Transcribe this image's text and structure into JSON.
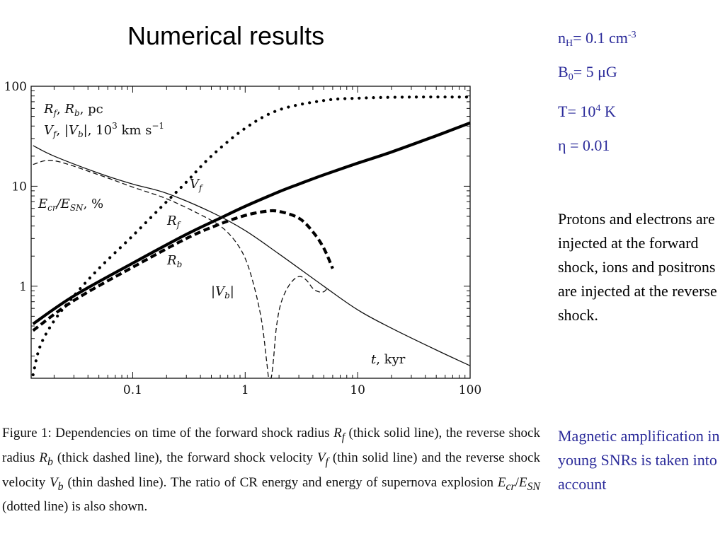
{
  "slide": {
    "title": "Numerical results",
    "params": {
      "nH": {
        "sym": "n",
        "sub": "H",
        "val": "= 0.1 cm",
        "sup": "-3"
      },
      "B0": {
        "sym": "B",
        "sub": "0",
        "val": "= 5 μG"
      },
      "T": {
        "pre": "T= 10",
        "sup": "4",
        "post": " K"
      },
      "eta": "η = 0.01"
    },
    "note1": "Protons and electrons are injected at the forward shock, ions and positrons are injected at the reverse shock.",
    "note2": "Magnetic amplification in young SNRs is taken into account"
  },
  "caption": {
    "p1": "Figure 1:  Dependencies on time of the forward shock radius ",
    "rf": "R",
    "rf_sub": "f",
    "p2": " (thick solid line), the reverse shock radius ",
    "rb": "R",
    "rb_sub": "b",
    "p3": " (thick dashed line), the forward shock velocity ",
    "vf": "V",
    "vf_sub": "f",
    "p4": " (thin solid line) and the reverse shock velocity ",
    "vb": "V",
    "vb_sub": "b",
    "p5": " (thin dashed line).  The ratio of CR energy and energy of supernova explosion ",
    "ecr": "E",
    "ecr_sub": "cr",
    "slash": "/",
    "esn": "E",
    "esn_sub": "SN",
    "p6": " (dotted line) is also shown."
  },
  "chart_data": {
    "type": "line",
    "xscale": "log",
    "yscale": "log",
    "xlim": [
      0.0125,
      100
    ],
    "ylim": [
      0.12,
      100
    ],
    "xticks": [
      {
        "value": 0.1,
        "label": "0.1"
      },
      {
        "value": 1,
        "label": "1"
      },
      {
        "value": 10,
        "label": "10"
      },
      {
        "value": 100,
        "label": "100"
      }
    ],
    "yticks": [
      {
        "value": 1,
        "label": "1"
      },
      {
        "value": 10,
        "label": "10"
      },
      {
        "value": 100,
        "label": "100"
      }
    ],
    "legend_text": {
      "line1": "R_f, R_b, pc",
      "line2": "V_f, |V_b|, 10^3 km s^-1"
    },
    "xlabel": "t, kyr",
    "series": [
      {
        "name": "R_f",
        "style": "thick-solid",
        "x": [
          0.013,
          0.03,
          0.1,
          0.3,
          0.6,
          1,
          2,
          3,
          5,
          10,
          20,
          50,
          100
        ],
        "y": [
          0.42,
          0.8,
          1.7,
          3.3,
          4.8,
          6.3,
          8.8,
          10.5,
          13,
          17,
          22,
          32,
          43
        ]
      },
      {
        "name": "R_b",
        "style": "thick-dashed",
        "x": [
          0.013,
          0.03,
          0.1,
          0.3,
          0.6,
          1,
          1.5,
          2,
          3,
          4,
          5,
          6
        ],
        "y": [
          0.36,
          0.72,
          1.55,
          3.0,
          4.2,
          5.1,
          5.6,
          5.6,
          4.8,
          3.5,
          2.4,
          1.5
        ]
      },
      {
        "name": "V_f",
        "style": "thin-solid",
        "x": [
          0.013,
          0.02,
          0.05,
          0.1,
          0.2,
          0.5,
          1,
          2,
          5,
          10,
          20,
          50,
          100
        ],
        "y": [
          25.5,
          20,
          13.5,
          10.5,
          8.5,
          5.5,
          3.6,
          2.1,
          1.0,
          0.58,
          0.38,
          0.23,
          0.16
        ]
      },
      {
        "name": "|V_b|",
        "style": "thin-dashed",
        "x": [
          0.013,
          0.02,
          0.05,
          0.1,
          0.2,
          0.4,
          0.6,
          0.8,
          1.0,
          1.2,
          1.4,
          1.55,
          1.62,
          1.7,
          1.78,
          1.9,
          2.1,
          2.5,
          3,
          3.5,
          4,
          4.5,
          5,
          5.5
        ],
        "y": [
          16.5,
          18,
          13,
          9.8,
          7.5,
          5.2,
          4.0,
          2.9,
          1.9,
          1.0,
          0.45,
          0.18,
          0.12,
          0.12,
          0.18,
          0.4,
          0.7,
          1.05,
          1.25,
          1.15,
          0.95,
          0.88,
          0.88,
          0.98
        ]
      },
      {
        "name": "E_cr/E_SN, %",
        "style": "dotted",
        "x": [
          0.013,
          0.015,
          0.02,
          0.03,
          0.05,
          0.1,
          0.2,
          0.3,
          0.5,
          1,
          2,
          5,
          10,
          30,
          100
        ],
        "y": [
          0.13,
          0.25,
          0.45,
          0.8,
          1.5,
          3.2,
          7,
          11,
          20,
          38,
          58,
          72,
          76,
          78,
          78
        ]
      }
    ],
    "annotations": [
      {
        "text": "V_f",
        "at": [
          1.5,
          8
        ]
      },
      {
        "text": "R_f",
        "at": [
          0.72,
          5.2
        ]
      },
      {
        "text": "R_b",
        "at": [
          0.72,
          1.6
        ]
      },
      {
        "text": "|V_b|",
        "at": [
          1.05,
          0.62
        ]
      },
      {
        "text": "E_cr/E_SN, %",
        "at": [
          0.012,
          7.2
        ]
      }
    ]
  }
}
